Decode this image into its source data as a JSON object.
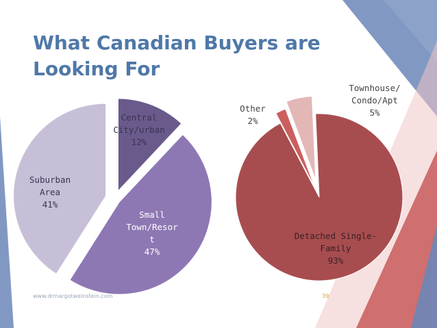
{
  "slide": {
    "title_lines": [
      "What Canadian Buyers are",
      "Looking For"
    ],
    "footer_url": "www.drmargotweinstein.com",
    "page_number": "39"
  },
  "colors": {
    "title": "#4f78a8",
    "deco_blue": "#6b86b8",
    "deco_red": "#c85a5a",
    "pie1_slices": [
      "#6a5a8c",
      "#8e78b4",
      "#c7bfd8"
    ],
    "pie2_slices": [
      "#a84d4f",
      "#cc5e5e",
      "#e3b7b6"
    ]
  },
  "chart_data": [
    {
      "type": "pie",
      "slices": [
        {
          "label_lines": [
            "Central",
            "City/urban",
            "12%"
          ],
          "value": 12
        },
        {
          "label_lines": [
            "Small",
            "Town/Resor",
            "t",
            "47%"
          ],
          "value": 47
        },
        {
          "label_lines": [
            "Suburban",
            "Area",
            "41%"
          ],
          "value": 41
        }
      ]
    },
    {
      "type": "pie",
      "slices": [
        {
          "label_lines": [
            "Detached Single-",
            "Family",
            "93%"
          ],
          "value": 93
        },
        {
          "label_lines": [
            "Other",
            "2%"
          ],
          "value": 2
        },
        {
          "label_lines": [
            "Townhouse/",
            "Condo/Apt",
            "5%"
          ],
          "value": 5
        }
      ]
    }
  ]
}
